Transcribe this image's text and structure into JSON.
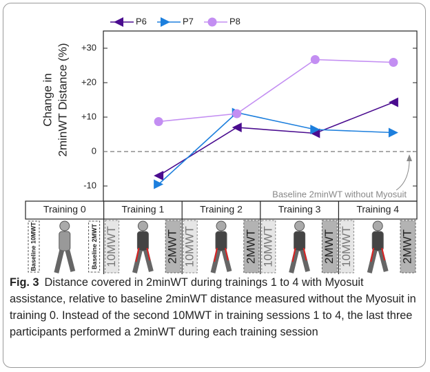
{
  "chart_data": {
    "type": "line",
    "ylabel": [
      "Change in",
      "2minWT Distance (%)"
    ],
    "categories": [
      "Training 0",
      "Training 1",
      "Training 2",
      "Training 3",
      "Training 4"
    ],
    "series": [
      {
        "name": "P6",
        "color": "#4a0c8f",
        "marker": "triangle-left",
        "values": [
          null,
          -7,
          7,
          5.3,
          14.3
        ]
      },
      {
        "name": "P7",
        "color": "#1d7fdd",
        "marker": "triangle-right",
        "values": [
          null,
          -9.5,
          11.3,
          6.4,
          5.5
        ]
      },
      {
        "name": "P8",
        "color": "#c38ef2",
        "marker": "circle",
        "values": [
          null,
          8.7,
          11,
          26.7,
          25.9
        ]
      }
    ],
    "ylim": [
      -14.4,
      35
    ],
    "yticks": [
      {
        "value": 30,
        "label": "+30"
      },
      {
        "value": 20,
        "label": "+20"
      },
      {
        "value": 10,
        "label": "+10"
      },
      0,
      -10
    ],
    "reference_line": {
      "value": 0,
      "label": "Baseline 2minWT without Myosuit"
    },
    "legend": "top",
    "panels": [
      {
        "left": "Baseline 10MWT",
        "right": "Baseline 2MWT"
      },
      {
        "left": "10MWT",
        "right": "2MWT"
      },
      {
        "left": "10MWT",
        "right": "2MWT"
      },
      {
        "left": "10MWT",
        "right": "2MWT"
      },
      {
        "left": "10MWT",
        "right": "2MWT"
      }
    ]
  },
  "caption": {
    "label": "Fig. 3",
    "text": "Distance covered in 2minWT during trainings 1 to 4 with Myosuit assistance, relative to baseline 2minWT distance measured without the Myosuit in training 0. Instead of the second 10MWT in training sessions 1 to 4, the last three participants performed a 2minWT during each training session"
  }
}
